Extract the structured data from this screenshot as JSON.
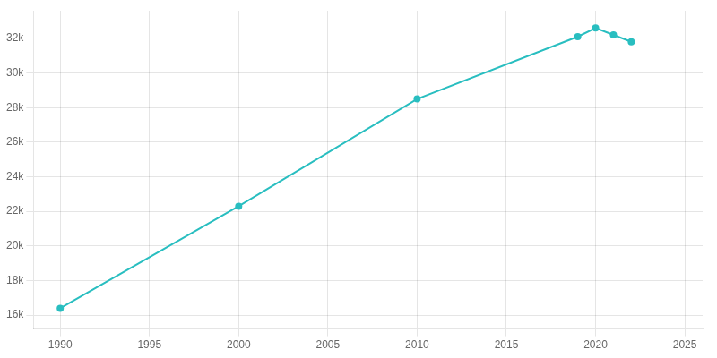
{
  "chart_data": {
    "type": "line",
    "x": [
      1990,
      2000,
      2010,
      2019,
      2020,
      2021,
      2022
    ],
    "values": [
      16400,
      22300,
      28500,
      32100,
      32600,
      32200,
      31800
    ],
    "color": "#29bec0",
    "marker": "circle",
    "xlim": [
      1988.5,
      2026
    ],
    "ylim": [
      15200,
      33600
    ],
    "xticks": [
      1990,
      1995,
      2000,
      2005,
      2010,
      2015,
      2020,
      2025
    ],
    "yticks": [
      {
        "value": 16000,
        "label": "16k"
      },
      {
        "value": 18000,
        "label": "18k"
      },
      {
        "value": 20000,
        "label": "20k"
      },
      {
        "value": 22000,
        "label": "22k"
      },
      {
        "value": 24000,
        "label": "24k"
      },
      {
        "value": 26000,
        "label": "26k"
      },
      {
        "value": 28000,
        "label": "28k"
      },
      {
        "value": 30000,
        "label": "30k"
      },
      {
        "value": 32000,
        "label": "32k"
      }
    ],
    "grid": true
  }
}
